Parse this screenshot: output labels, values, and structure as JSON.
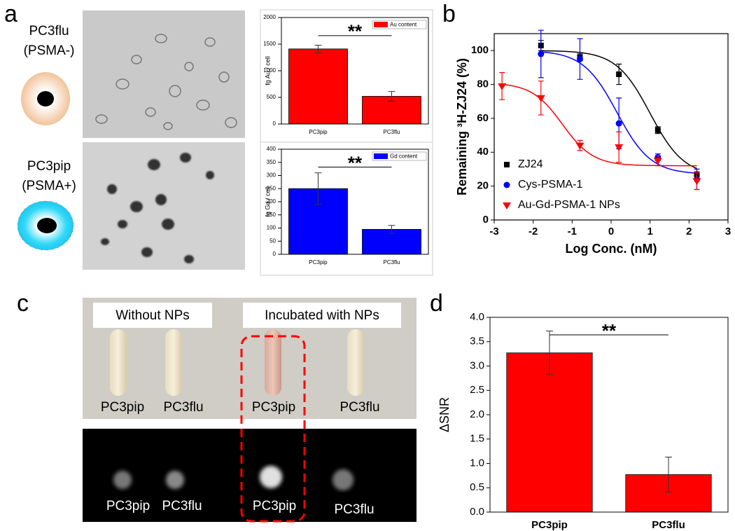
{
  "panel_labels": [
    "a",
    "b",
    "c",
    "d"
  ],
  "cell_lines": [
    {
      "name": "PC3flu",
      "marker": "(PSMA-)"
    },
    {
      "name": "PC3pip",
      "marker": "(PSMA+)"
    }
  ],
  "photo": {
    "groups": [
      "Without NPs",
      "Incubated with NPs"
    ],
    "tube_labels": [
      "PC3pip",
      "PC3flu",
      "PC3pip",
      "PC3flu"
    ],
    "mri_labels": [
      "PC3pip",
      "PC3flu",
      "PC3pip",
      "PC3flu"
    ]
  },
  "chart_data": [
    {
      "type": "bar",
      "y_label": "fg Au / cell",
      "categories": [
        "PC3pip",
        "PC3flu"
      ],
      "series": [
        {
          "name": "Au content",
          "color": "#ff0000",
          "values": [
            1410,
            520
          ],
          "errors": [
            70,
            90
          ]
        }
      ],
      "ylim": [
        0,
        2000
      ],
      "yticks": [
        0,
        500,
        1000,
        1500,
        2000
      ],
      "annotation": "**"
    },
    {
      "type": "bar",
      "y_label": "fg Gd / cell",
      "categories": [
        "PC3pip",
        "PC3flu"
      ],
      "series": [
        {
          "name": "Gd content",
          "color": "#0000ff",
          "values": [
            250,
            95
          ],
          "errors": [
            60,
            15
          ]
        }
      ],
      "ylim": [
        0,
        400
      ],
      "yticks": [
        0,
        50,
        100,
        150,
        200,
        250,
        300,
        350,
        400
      ],
      "annotation": "**"
    },
    {
      "type": "scatter",
      "x_label": "Log Conc. (nM)",
      "y_label": "Remaining ³H-ZJ24 (%)",
      "xlim": [
        -3,
        3
      ],
      "xticks": [
        -3,
        -2,
        -1,
        0,
        1,
        2,
        3
      ],
      "ylim": [
        0,
        110
      ],
      "yticks": [
        0,
        20,
        40,
        60,
        80,
        100
      ],
      "legend": "lower left",
      "series": [
        {
          "name": "ZJ24",
          "color": "#000000",
          "marker": "square",
          "x": [
            -1.8,
            -0.8,
            0.2,
            1.2,
            2.2
          ],
          "values": [
            103,
            96,
            86,
            53,
            27
          ],
          "errors": [
            3,
            2,
            6,
            2,
            3
          ],
          "fit": {
            "top": 100,
            "bottom": 26,
            "log_ec50": 1.0,
            "hill": 1
          }
        },
        {
          "name": "Cys-PSMA-1",
          "color": "#0000ff",
          "marker": "circle",
          "x": [
            -1.8,
            -0.8,
            0.2,
            1.2,
            2.2
          ],
          "values": [
            98,
            95,
            57,
            37,
            24
          ],
          "errors": [
            14,
            12,
            15,
            2,
            6
          ],
          "fit": {
            "top": 100,
            "bottom": 27,
            "log_ec50": 0.15,
            "hill": 1
          }
        },
        {
          "name": "Au-Gd-PSMA-1 NPs",
          "color": "#ff0000",
          "marker": "triangle-down",
          "x": [
            -2.8,
            -1.8,
            -0.8,
            0.2,
            1.2,
            2.2
          ],
          "values": [
            79,
            72,
            44,
            43,
            35,
            23
          ],
          "errors": [
            8,
            10,
            3,
            9,
            3,
            5
          ],
          "fit": {
            "top": 81,
            "bottom": 32,
            "log_ec50": -1.25,
            "hill": 1.1
          }
        }
      ]
    },
    {
      "type": "bar",
      "y_label": "ΔSNR",
      "categories": [
        "PC3pip",
        "PC3flu"
      ],
      "color": "#ff0000",
      "values": [
        3.27,
        0.77
      ],
      "errors": [
        0.45,
        0.36
      ],
      "ylim": [
        0,
        4.0
      ],
      "yticks": [
        {
          "value": 0,
          "label": "0.0"
        },
        {
          "value": 0.5,
          "label": "0.5"
        },
        {
          "value": 1.0,
          "label": "1.0"
        },
        {
          "value": 1.5,
          "label": "1.5"
        },
        {
          "value": 2.0,
          "label": "2.0"
        },
        {
          "value": 2.5,
          "label": "2.5"
        },
        {
          "value": 3.0,
          "label": "3.0"
        },
        {
          "value": 3.5,
          "label": "3.5"
        },
        {
          "value": 4.0,
          "label": "4.0"
        }
      ],
      "annotation": "**"
    }
  ]
}
